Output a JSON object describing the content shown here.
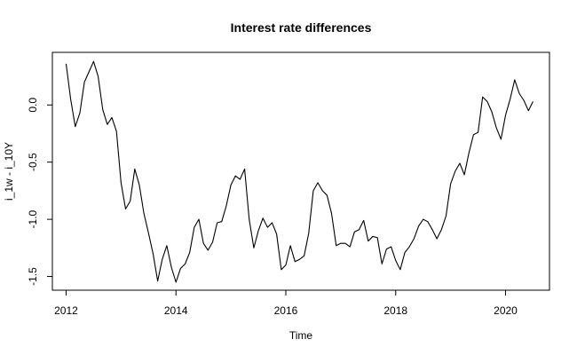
{
  "chart_data": {
    "type": "line",
    "title": "Interest rate differences",
    "xlabel": "Time",
    "ylabel": "i_1w - i_10Y",
    "xlim": [
      2011.75,
      2020.8
    ],
    "ylim": [
      -1.62,
      0.46
    ],
    "x_ticks": [
      2012,
      2014,
      2016,
      2018,
      2020
    ],
    "x_tick_labels": [
      "2012",
      "2014",
      "2016",
      "2018",
      "2020"
    ],
    "y_ticks": [
      0.0,
      -0.5,
      -1.0,
      -1.5
    ],
    "y_tick_labels": [
      "0.0",
      "-0.5",
      "-1.0",
      "-1.5"
    ],
    "grid": false,
    "series": [
      {
        "x": [
          2012.0,
          2012.083,
          2012.167,
          2012.25,
          2012.333,
          2012.417,
          2012.5,
          2012.583,
          2012.667,
          2012.75,
          2012.833,
          2012.917,
          2013.0,
          2013.083,
          2013.167,
          2013.25,
          2013.333,
          2013.417,
          2013.5,
          2013.583,
          2013.667,
          2013.75,
          2013.833,
          2013.917,
          2014.0,
          2014.083,
          2014.167,
          2014.25,
          2014.333,
          2014.417,
          2014.5,
          2014.583,
          2014.667,
          2014.75,
          2014.833,
          2014.917,
          2015.0,
          2015.083,
          2015.167,
          2015.25,
          2015.333,
          2015.417,
          2015.5,
          2015.583,
          2015.667,
          2015.75,
          2015.833,
          2015.917,
          2016.0,
          2016.083,
          2016.167,
          2016.25,
          2016.333,
          2016.417,
          2016.5,
          2016.583,
          2016.667,
          2016.75,
          2016.833,
          2016.917,
          2017.0,
          2017.083,
          2017.167,
          2017.25,
          2017.333,
          2017.417,
          2017.5,
          2017.583,
          2017.667,
          2017.75,
          2017.833,
          2017.917,
          2018.0,
          2018.083,
          2018.167,
          2018.25,
          2018.333,
          2018.417,
          2018.5,
          2018.583,
          2018.667,
          2018.75,
          2018.833,
          2018.917,
          2019.0,
          2019.083,
          2019.167,
          2019.25,
          2019.333,
          2019.417,
          2019.5,
          2019.583,
          2019.667,
          2019.75,
          2019.833,
          2019.917,
          2020.0,
          2020.083,
          2020.167,
          2020.25,
          2020.333,
          2020.417,
          2020.5
        ],
        "values": [
          0.36,
          0.05,
          -0.19,
          -0.07,
          0.2,
          0.29,
          0.38,
          0.25,
          -0.04,
          -0.17,
          -0.11,
          -0.23,
          -0.68,
          -0.91,
          -0.84,
          -0.56,
          -0.7,
          -0.95,
          -1.12,
          -1.3,
          -1.54,
          -1.35,
          -1.23,
          -1.42,
          -1.55,
          -1.43,
          -1.39,
          -1.29,
          -1.07,
          -1.0,
          -1.21,
          -1.27,
          -1.2,
          -1.03,
          -1.02,
          -0.88,
          -0.7,
          -0.62,
          -0.65,
          -0.56,
          -1.0,
          -1.25,
          -1.1,
          -0.99,
          -1.07,
          -1.03,
          -1.13,
          -1.44,
          -1.4,
          -1.23,
          -1.37,
          -1.35,
          -1.32,
          -1.12,
          -0.75,
          -0.68,
          -0.75,
          -0.79,
          -0.95,
          -1.23,
          -1.21,
          -1.21,
          -1.24,
          -1.11,
          -1.09,
          -1.01,
          -1.19,
          -1.15,
          -1.16,
          -1.39,
          -1.26,
          -1.24,
          -1.36,
          -1.44,
          -1.29,
          -1.24,
          -1.17,
          -1.06,
          -1.0,
          -1.02,
          -1.09,
          -1.17,
          -1.09,
          -0.97,
          -0.69,
          -0.58,
          -0.51,
          -0.61,
          -0.42,
          -0.26,
          -0.24,
          0.07,
          0.03,
          -0.06,
          -0.2,
          -0.3,
          -0.09,
          0.05,
          0.22,
          0.1,
          0.04,
          -0.05,
          0.03
        ]
      }
    ]
  }
}
